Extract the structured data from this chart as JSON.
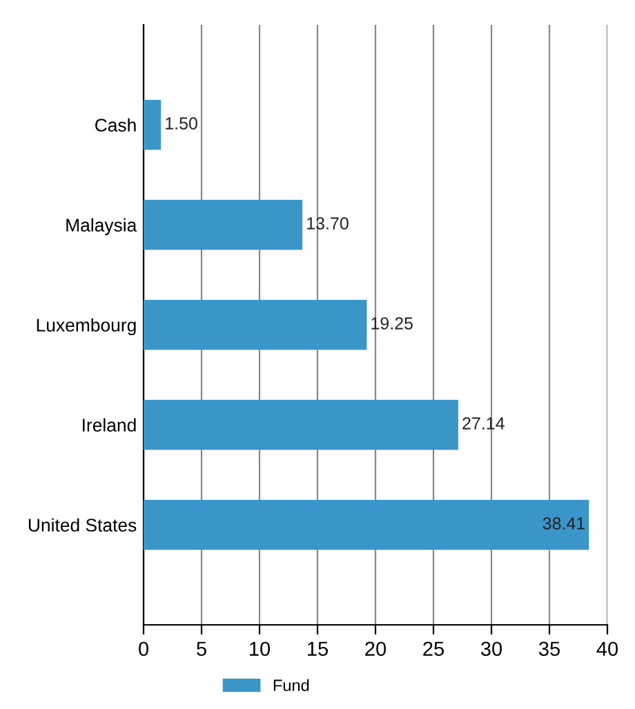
{
  "chart_data": {
    "type": "bar",
    "orientation": "horizontal",
    "categories": [
      "Cash",
      "Malaysia",
      "Luxembourg",
      "Ireland",
      "United States"
    ],
    "series": [
      {
        "name": "Fund",
        "color": "#3a96c9",
        "values": [
          1.5,
          13.7,
          19.25,
          27.14,
          38.41
        ],
        "value_labels": [
          "1.50",
          "13.70",
          "19.25",
          "27.14",
          "38.41"
        ]
      }
    ],
    "xlim": [
      0,
      40
    ],
    "xticks": [
      0,
      5,
      10,
      15,
      20,
      25,
      30,
      35,
      40
    ],
    "grid": "x",
    "legend": "bottom"
  }
}
